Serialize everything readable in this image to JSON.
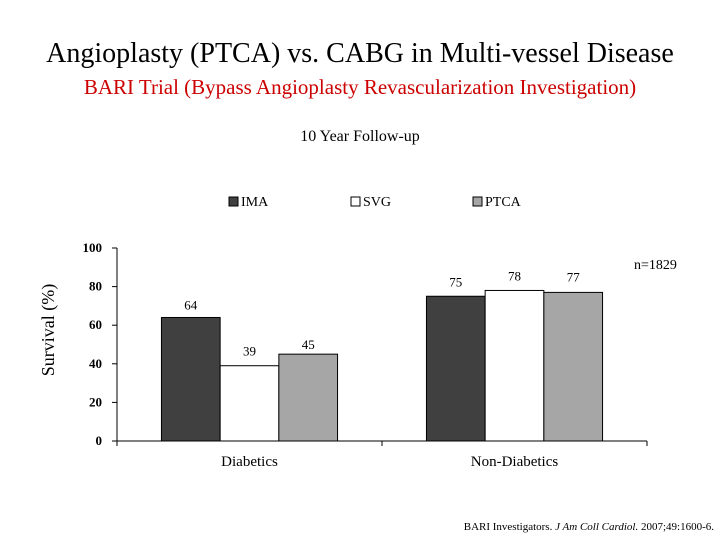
{
  "slide": {
    "title": "Angioplasty (PTCA) vs. CABG in Multi-vessel Disease",
    "subtitle": "BARI Trial (Bypass Angioplasty Revascularization Investigation)",
    "note": "n=1829",
    "citation_authors": "BARI Investigators. ",
    "citation_journal": "J Am Coll Cardiol.",
    "citation_rest": " 2007;49:1600-6."
  },
  "colors": {
    "title": "#000000",
    "subtitle": "#cc0000"
  },
  "chart_data": {
    "type": "bar",
    "title": "10 Year Follow-up",
    "xlabel": "",
    "ylabel": "Survival (%)",
    "ylim": [
      0,
      100
    ],
    "yticks": [
      0,
      20,
      40,
      60,
      80,
      100
    ],
    "categories": [
      "Diabetics",
      "Non-Diabetics"
    ],
    "series": [
      {
        "name": "IMA",
        "values": [
          64,
          75
        ],
        "color": "#404040"
      },
      {
        "name": "SVG",
        "values": [
          39,
          78
        ],
        "color": "#ffffff"
      },
      {
        "name": "PTCA",
        "values": [
          45,
          77
        ],
        "color": "#a6a6a6"
      }
    ],
    "data_labels": true,
    "legend": "top",
    "grid": false
  }
}
